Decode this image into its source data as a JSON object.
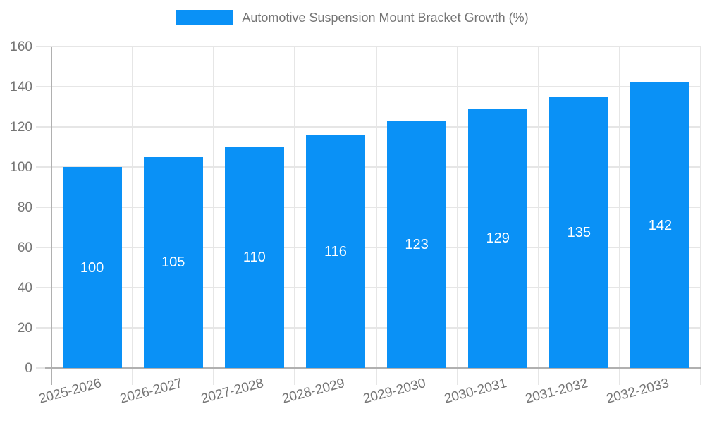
{
  "chart_data": {
    "type": "bar",
    "title": "",
    "legend": {
      "label": "Automotive Suspension Mount Bracket Growth (%)",
      "position": "top-center"
    },
    "categories": [
      "2025-2026",
      "2026-2027",
      "2027-2028",
      "2028-2029",
      "2029-2030",
      "2030-2031",
      "2031-2032",
      "2032-2033"
    ],
    "series": [
      {
        "name": "Automotive Suspension Mount Bracket Growth (%)",
        "values": [
          100,
          105,
          110,
          116,
          123,
          129,
          135,
          142
        ]
      }
    ],
    "value_labels_shown_inside_bars": [
      100,
      105,
      110,
      116,
      123,
      129,
      135,
      142
    ],
    "xlabel": "",
    "ylabel": "",
    "ylim": [
      0,
      160
    ],
    "ytick_step": 20,
    "ytick_labels": [
      "0",
      "20",
      "40",
      "60",
      "80",
      "100",
      "120",
      "140",
      "160"
    ],
    "grid": true,
    "colors": {
      "bar": "#0a91f6",
      "bar_value_label": "#ffffff",
      "tick_label": "#757575",
      "legend_text": "#757575",
      "gridline": "#e6e6e6",
      "axis_line": "#b0b0b0"
    }
  }
}
